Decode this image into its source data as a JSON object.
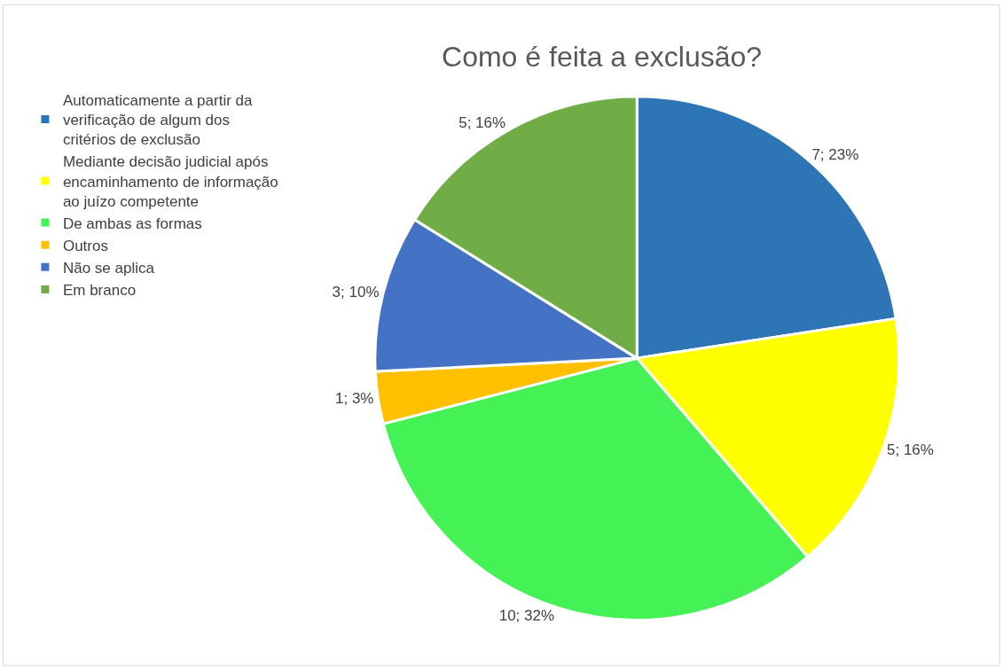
{
  "chart_data": {
    "type": "pie",
    "title": "Como é feita a exclusão?",
    "categories": [
      "Automaticamente a partir da verificação de algum dos critérios de exclusão",
      "Mediante decisão judicial após encaminhamento de informação ao juízo competente",
      "De ambas as formas",
      "Outros",
      "Não se aplica",
      "Em branco"
    ],
    "values": [
      7,
      5,
      10,
      1,
      3,
      5
    ],
    "value_labels": [
      "7; 23%",
      "5; 16%",
      "10; 32%",
      "1; 3%",
      "3; 10%",
      "5; 16%"
    ],
    "colors": [
      "#2e75b6",
      "#ffff00",
      "#44f255",
      "#ffc000",
      "#4472c4",
      "#70ad47"
    ],
    "legend": "left"
  }
}
